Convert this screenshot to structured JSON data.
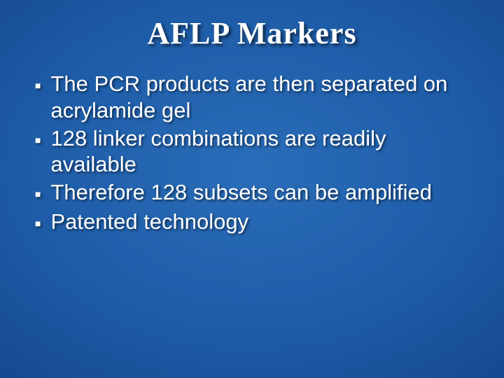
{
  "slide": {
    "title": "AFLP Markers",
    "title_fontsize": 44,
    "title_color": "#ffffff",
    "body_fontsize": 31,
    "body_color": "#ffffff",
    "bullet_char": "■",
    "bullet_color": "#ffffff",
    "background_gradient": {
      "inner": "#2a6db8",
      "mid": "#164a90",
      "outer": "#081d48"
    },
    "bullets": [
      "The PCR products are then separated on acrylamide gel",
      "128 linker combinations are readily available",
      "Therefore 128 subsets can be amplified",
      "Patented technology"
    ]
  }
}
